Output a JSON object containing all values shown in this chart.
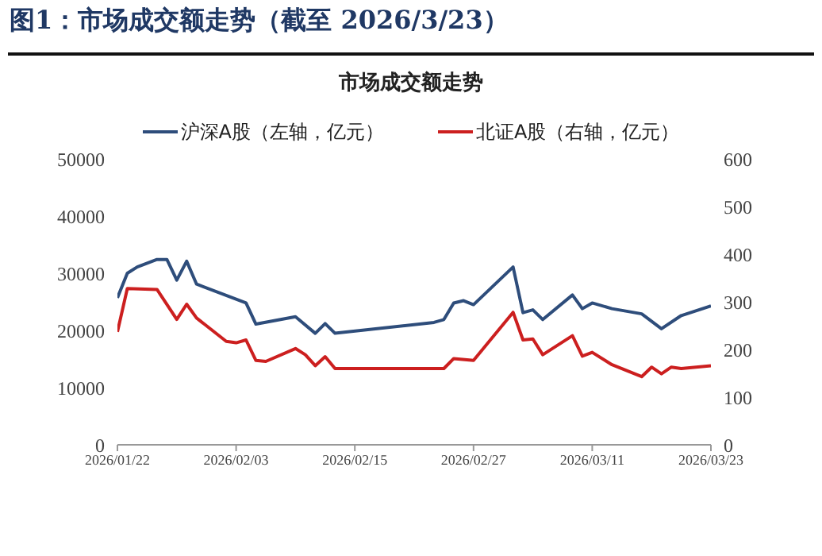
{
  "chart_data": {
    "type": "line",
    "title": "图1：市场成交额走势（截至 2026/3/23）",
    "subtitle": "市场成交额走势",
    "xlim": [
      "2026-01-22",
      "2026-03-23"
    ],
    "xticks": [
      {
        "value": "2026-01-22",
        "label": "2026/01/22"
      },
      {
        "value": "2026-02-03",
        "label": "2026/02/03"
      },
      {
        "value": "2026-02-15",
        "label": "2026/02/15"
      },
      {
        "value": "2026-02-27",
        "label": "2026/02/27"
      },
      {
        "value": "2026-03-11",
        "label": "2026/03/11"
      },
      {
        "value": "2026-03-23",
        "label": "2026/03/23"
      }
    ],
    "ylim": [
      0,
      50000
    ],
    "yticks": [
      0,
      10000,
      20000,
      30000,
      40000,
      50000
    ],
    "y2lim": [
      0,
      600
    ],
    "y2ticks": [
      0,
      100,
      200,
      300,
      400,
      500,
      600
    ],
    "grid": false,
    "legend": "top",
    "marker": "none",
    "line_style": "solid",
    "series": [
      {
        "name": "沪深A股（左轴，亿元）",
        "color": "#2e4d7b",
        "x": [
          "2026-01-22",
          "2026-01-23",
          "2026-01-24",
          "2026-01-26",
          "2026-01-27",
          "2026-01-28",
          "2026-01-29",
          "2026-01-30",
          "2026-02-04",
          "2026-02-05",
          "2026-02-09",
          "2026-02-11",
          "2026-02-12",
          "2026-02-13",
          "2026-02-23",
          "2026-02-24",
          "2026-02-25",
          "2026-02-26",
          "2026-02-27",
          "2026-03-03",
          "2026-03-04",
          "2026-03-05",
          "2026-03-06",
          "2026-03-09",
          "2026-03-10",
          "2026-03-11",
          "2026-03-13",
          "2026-03-16",
          "2026-03-18",
          "2026-03-20",
          "2026-03-23"
        ],
        "values": [
          25700,
          30000,
          31100,
          32400,
          32400,
          28800,
          32100,
          28100,
          24800,
          21100,
          22400,
          19500,
          21200,
          19500,
          21400,
          21900,
          24800,
          25200,
          24500,
          31100,
          23100,
          23600,
          21900,
          26200,
          23800,
          24800,
          23800,
          22900,
          20300,
          22600,
          24300
        ]
      },
      {
        "name": "北证A股（右轴，亿元）",
        "color": "#cc1f1f",
        "axis": "y2",
        "x": [
          "2026-01-22",
          "2026-01-23",
          "2026-01-26",
          "2026-01-28",
          "2026-01-29",
          "2026-01-30",
          "2026-02-02",
          "2026-02-03",
          "2026-02-04",
          "2026-02-05",
          "2026-02-06",
          "2026-02-09",
          "2026-02-10",
          "2026-02-11",
          "2026-02-12",
          "2026-02-13",
          "2026-02-24",
          "2026-02-25",
          "2026-02-27",
          "2026-03-03",
          "2026-03-04",
          "2026-03-05",
          "2026-03-06",
          "2026-03-09",
          "2026-03-10",
          "2026-03-11",
          "2026-03-13",
          "2026-03-16",
          "2026-03-17",
          "2026-03-18",
          "2026-03-19",
          "2026-03-20",
          "2026-03-23"
        ],
        "values": [
          237,
          328,
          326,
          263,
          295,
          266,
          217,
          214,
          220,
          177,
          175,
          202,
          189,
          166,
          185,
          160,
          160,
          181,
          177,
          278,
          220,
          222,
          189,
          229,
          186,
          194,
          168,
          143,
          163,
          149,
          163,
          160,
          166
        ]
      }
    ]
  }
}
